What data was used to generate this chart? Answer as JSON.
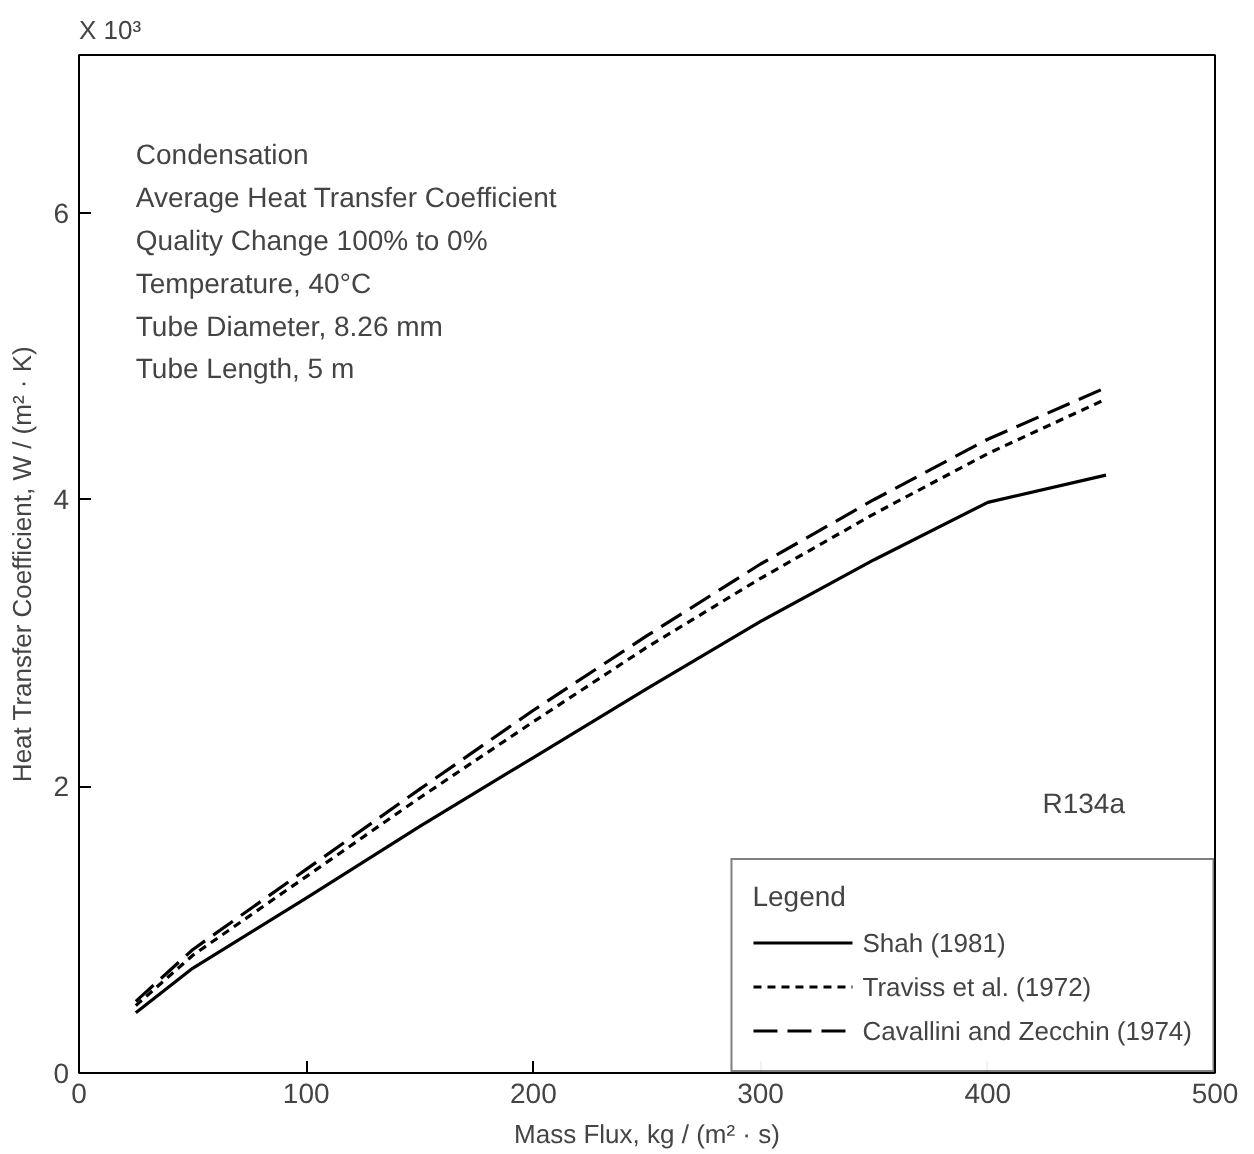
{
  "chart_data": {
    "type": "line",
    "xlabel": "Mass Flux, kg / (m² · s)",
    "ylabel": "Heat Transfer Coefficient, W / (m² · K)",
    "annotations": [
      "X 10³",
      "Condensation",
      "Average Heat Transfer Coefficient",
      "Quality Change 100% to 0%",
      "Temperature, 40°C",
      "Tube Diameter, 8.26 mm",
      "Tube Length, 5 m",
      "R134a"
    ],
    "x": [
      25,
      50,
      100,
      150,
      200,
      250,
      300,
      350,
      400,
      452
    ],
    "series": [
      {
        "name": "Shah (1981)",
        "color": "#000000",
        "line_style": "solid",
        "values": [
          0.42,
          0.73,
          1.22,
          1.72,
          2.2,
          2.68,
          3.15,
          3.58,
          3.98,
          4.17
        ]
      },
      {
        "name": "Traviss et al. (1972)",
        "color": "#000000",
        "line_style": "dotted",
        "values": [
          0.47,
          0.82,
          1.37,
          1.92,
          2.45,
          2.97,
          3.45,
          3.9,
          4.32,
          4.7
        ]
      },
      {
        "name": "Cavallini and Zecchin (1974)",
        "color": "#000000",
        "line_style": "dashed",
        "values": [
          0.5,
          0.86,
          1.42,
          1.98,
          2.53,
          3.05,
          3.55,
          4.0,
          4.42,
          4.78
        ]
      }
    ],
    "legend_title": "Legend",
    "legend": "bottom right",
    "grid": false,
    "marker": "none",
    "xlim": [
      0,
      500
    ],
    "ylim": [
      0,
      7.1
    ],
    "xticks": [
      0,
      100,
      200,
      300,
      400,
      500
    ],
    "yticks": [
      0,
      2,
      4,
      6
    ]
  }
}
